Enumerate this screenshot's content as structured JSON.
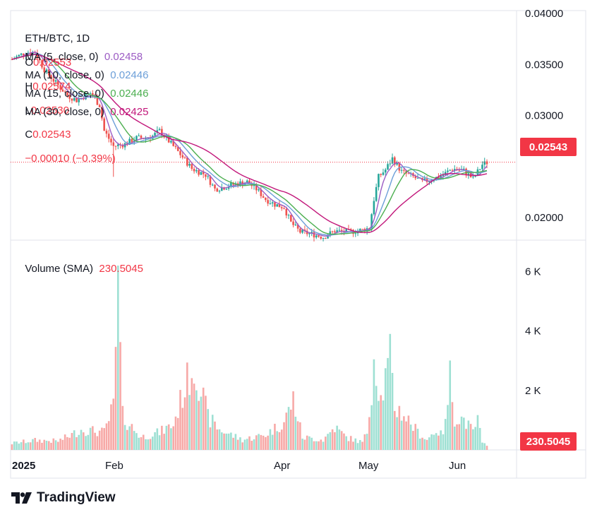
{
  "header": {
    "symbol": "ETH/BTC, 1D",
    "open_label": "O",
    "open": "0.02553",
    "high_label": "H",
    "high": "0.02574",
    "low_label": "L",
    "low": "0.02530",
    "close_label": "C",
    "close": "0.02543",
    "change": "−0.00010 (−0.39%)"
  },
  "moving_averages": [
    {
      "label": "MA (5, close, 0)",
      "value": "0.02458",
      "color": "#9c5cc4"
    },
    {
      "label": "MA (10, close, 0)",
      "value": "0.02446",
      "color": "#6c9fd8"
    },
    {
      "label": "MA (15, close, 0)",
      "value": "0.02446",
      "color": "#4caf50"
    },
    {
      "label": "MA (30, close, 0)",
      "value": "0.02425",
      "color": "#c2187b"
    }
  ],
  "volume_legend": {
    "label": "Volume (SMA)",
    "value": "230.5045"
  },
  "price_tag": {
    "value": "0.02543",
    "color": "#f23645"
  },
  "volume_tag": {
    "value": "230.5045",
    "color": "#f23645"
  },
  "brand": {
    "name": "TradingView",
    "icon": "tradingview-logo-icon"
  },
  "chart_data": {
    "type": "candlestick",
    "price_axis": {
      "ticks": [
        "0.04000",
        "0.03500",
        "0.03000",
        "0.02000"
      ],
      "range": [
        0.0178,
        0.04
      ]
    },
    "volume_axis": {
      "ticks": [
        "6 K",
        "4 K",
        "2 K"
      ],
      "range": [
        0,
        6700
      ]
    },
    "x_axis": {
      "ticks": [
        "2025",
        "Feb",
        "Apr",
        "May",
        "Jun"
      ]
    },
    "last_price": 0.02543,
    "colors": {
      "up": "#26a69a",
      "down": "#ef5350",
      "vol_up": "#9ee0d3",
      "vol_down": "#f7a9a7"
    },
    "anchors": [
      [
        0,
        0.0355
      ],
      [
        6,
        0.0362
      ],
      [
        10,
        0.0362
      ],
      [
        14,
        0.0345
      ],
      [
        19,
        0.0332
      ],
      [
        24,
        0.032
      ],
      [
        28,
        0.0315
      ],
      [
        34,
        0.0322
      ],
      [
        38,
        0.031
      ],
      [
        40,
        0.0285
      ],
      [
        44,
        0.027
      ],
      [
        49,
        0.0272
      ],
      [
        54,
        0.0278
      ],
      [
        58,
        0.0278
      ],
      [
        61,
        0.028
      ],
      [
        64,
        0.0285
      ],
      [
        68,
        0.0275
      ],
      [
        73,
        0.0262
      ],
      [
        78,
        0.0248
      ],
      [
        84,
        0.0242
      ],
      [
        88,
        0.0228
      ],
      [
        92,
        0.023
      ],
      [
        97,
        0.0233
      ],
      [
        102,
        0.0235
      ],
      [
        106,
        0.0228
      ],
      [
        110,
        0.0218
      ],
      [
        114,
        0.0213
      ],
      [
        118,
        0.021
      ],
      [
        121,
        0.0195
      ],
      [
        125,
        0.0186
      ],
      [
        130,
        0.0184
      ],
      [
        135,
        0.0181
      ],
      [
        140,
        0.0187
      ],
      [
        146,
        0.0186
      ],
      [
        152,
        0.0188
      ],
      [
        155,
        0.019
      ],
      [
        157,
        0.0218
      ],
      [
        159,
        0.024
      ],
      [
        162,
        0.0247
      ],
      [
        165,
        0.0258
      ],
      [
        169,
        0.0245
      ],
      [
        174,
        0.024
      ],
      [
        178,
        0.0235
      ],
      [
        183,
        0.0238
      ],
      [
        187,
        0.0242
      ],
      [
        191,
        0.0248
      ],
      [
        196,
        0.0246
      ],
      [
        200,
        0.0238
      ],
      [
        204,
        0.0252
      ],
      [
        206,
        0.0254
      ]
    ],
    "volume_anchors": [
      [
        0,
        260
      ],
      [
        10,
        380
      ],
      [
        20,
        350
      ],
      [
        26,
        600
      ],
      [
        30,
        800
      ],
      [
        40,
        700
      ],
      [
        44,
        1700
      ],
      [
        46,
        6200
      ],
      [
        48,
        1350
      ],
      [
        50,
        1100
      ],
      [
        56,
        500
      ],
      [
        64,
        700
      ],
      [
        70,
        1000
      ],
      [
        74,
        2200
      ],
      [
        78,
        3200
      ],
      [
        80,
        3100
      ],
      [
        85,
        1300
      ],
      [
        90,
        800
      ],
      [
        100,
        400
      ],
      [
        110,
        600
      ],
      [
        118,
        1100
      ],
      [
        122,
        2000
      ],
      [
        126,
        500
      ],
      [
        135,
        400
      ],
      [
        140,
        900
      ],
      [
        145,
        500
      ],
      [
        152,
        300
      ],
      [
        154,
        700
      ],
      [
        156,
        2500
      ],
      [
        157,
        3800
      ],
      [
        160,
        2000
      ],
      [
        164,
        3600
      ],
      [
        166,
        1700
      ],
      [
        170,
        1400
      ],
      [
        176,
        700
      ],
      [
        180,
        400
      ],
      [
        184,
        800
      ],
      [
        186,
        600
      ],
      [
        188,
        1000
      ],
      [
        190,
        2900
      ],
      [
        192,
        1300
      ],
      [
        196,
        1200
      ],
      [
        200,
        700
      ],
      [
        202,
        1200
      ],
      [
        204,
        230
      ],
      [
        206,
        230
      ]
    ],
    "ma_periods": [
      5,
      10,
      15,
      30
    ]
  }
}
